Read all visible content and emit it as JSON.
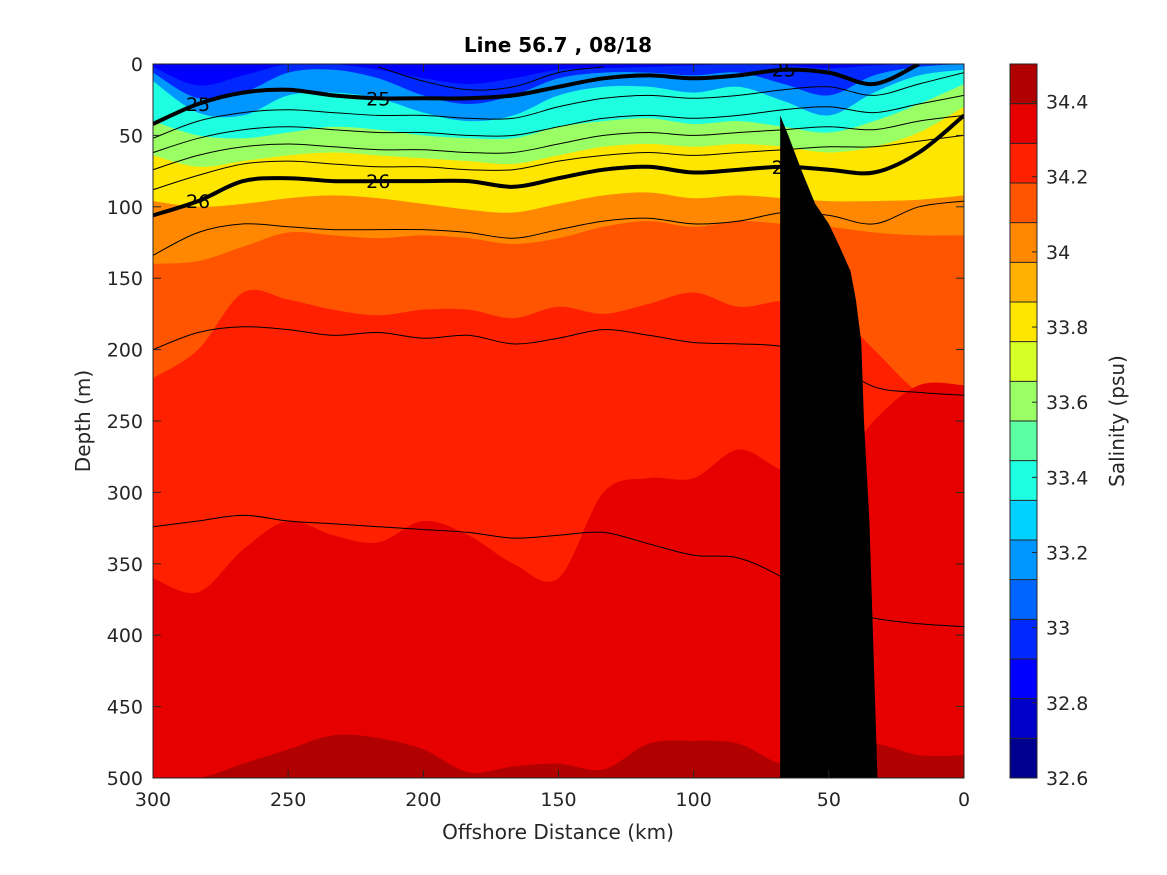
{
  "chart_data": {
    "type": "heatmap",
    "title": "Line 56.7 , 08/18",
    "xlabel": "Offshore Distance (km)",
    "ylabel": "Depth (m)",
    "colorbar_label": "Salinity (psu)",
    "xlim": [
      300,
      0
    ],
    "ylim": [
      500,
      0
    ],
    "x_ticks": [
      300,
      250,
      200,
      150,
      100,
      50,
      0
    ],
    "y_ticks": [
      0,
      50,
      100,
      150,
      200,
      250,
      300,
      350,
      400,
      450,
      500
    ],
    "colorbar_ticks": [
      32.6,
      32.8,
      33.0,
      33.2,
      33.4,
      33.6,
      33.8,
      34.0,
      34.2,
      34.4
    ],
    "colorbar_tick_labels": [
      "32.6",
      "32.8",
      "33",
      "33.2",
      "33.4",
      "33.6",
      "33.8",
      "34",
      "34.2",
      "34.4"
    ],
    "colorbar_range": [
      32.6,
      34.5
    ],
    "colormap": [
      "#00008f",
      "#0000c8",
      "#0000ff",
      "#0028ff",
      "#0064ff",
      "#0096ff",
      "#00d2ff",
      "#1effe1",
      "#5cffa3",
      "#9aff64",
      "#d6ff28",
      "#ffe600",
      "#ffb000",
      "#ff8800",
      "#ff5400",
      "#ff2000",
      "#e60000",
      "#b00000"
    ],
    "salinity_levels": [
      {
        "value": 33.0,
        "depth": [
          2,
          15,
          8,
          0,
          0,
          4,
          10,
          14,
          10,
          4,
          3,
          2,
          1,
          0,
          1,
          3,
          1,
          0,
          0
        ]
      },
      {
        "value": 33.2,
        "depth": [
          6,
          24,
          20,
          6,
          4,
          10,
          22,
          28,
          22,
          10,
          6,
          6,
          8,
          6,
          14,
          22,
          8,
          2,
          0
        ]
      },
      {
        "value": 33.4,
        "depth": [
          12,
          34,
          36,
          22,
          20,
          24,
          34,
          40,
          36,
          22,
          16,
          16,
          20,
          16,
          26,
          36,
          20,
          8,
          4
        ]
      },
      {
        "value": 33.6,
        "depth": [
          40,
          50,
          52,
          48,
          44,
          46,
          50,
          52,
          52,
          44,
          40,
          38,
          42,
          40,
          44,
          48,
          40,
          28,
          14
        ]
      },
      {
        "value": 33.8,
        "depth": [
          64,
          72,
          68,
          64,
          62,
          64,
          66,
          68,
          70,
          64,
          58,
          56,
          58,
          56,
          58,
          62,
          58,
          48,
          30
        ]
      },
      {
        "value": 34.0,
        "depth": [
          96,
          100,
          98,
          94,
          92,
          94,
          98,
          102,
          104,
          98,
          92,
          90,
          94,
          92,
          94,
          96,
          96,
          95,
          92
        ]
      },
      {
        "value": 34.1,
        "depth": [
          140,
          138,
          128,
          118,
          120,
          122,
          120,
          122,
          126,
          122,
          114,
          110,
          114,
          110,
          112,
          114,
          118,
          120,
          120
        ]
      },
      {
        "value": 34.2,
        "depth": [
          220,
          200,
          160,
          165,
          172,
          176,
          172,
          172,
          178,
          170,
          175,
          168,
          160,
          170,
          166,
          170,
          200,
          230,
          240
        ]
      },
      {
        "value": 34.3,
        "depth": [
          360,
          370,
          340,
          320,
          330,
          335,
          320,
          330,
          350,
          360,
          300,
          290,
          290,
          270,
          285,
          290,
          250,
          225,
          225
        ]
      },
      {
        "value": 34.4,
        "depth": [
          500,
          500,
          490,
          480,
          470,
          472,
          480,
          496,
          492,
          490,
          494,
          476,
          474,
          476,
          490,
          480,
          476,
          484,
          484
        ]
      }
    ],
    "density_contours": [
      {
        "sigma": 24.8,
        "label": "",
        "bold": false,
        "depth": [
          null,
          null,
          null,
          null,
          null,
          2,
          12,
          18,
          16,
          6,
          2,
          null,
          null,
          null,
          null,
          null,
          null,
          null,
          null
        ]
      },
      {
        "sigma": 25,
        "label": "25",
        "bold": true,
        "depth": [
          42,
          28,
          20,
          18,
          22,
          24,
          24,
          24,
          22,
          16,
          10,
          8,
          10,
          8,
          4,
          6,
          14,
          0,
          null
        ]
      },
      {
        "sigma": 25.2,
        "label": "",
        "bold": false,
        "depth": [
          52,
          40,
          34,
          32,
          34,
          36,
          36,
          38,
          38,
          30,
          24,
          22,
          24,
          22,
          18,
          16,
          22,
          14,
          6
        ]
      },
      {
        "sigma": 25.4,
        "label": "",
        "bold": false,
        "depth": [
          62,
          52,
          46,
          44,
          46,
          48,
          48,
          50,
          50,
          44,
          38,
          36,
          38,
          36,
          32,
          30,
          34,
          28,
          22
        ]
      },
      {
        "sigma": 25.6,
        "label": "",
        "bold": false,
        "depth": [
          74,
          64,
          58,
          56,
          58,
          60,
          60,
          62,
          62,
          56,
          50,
          48,
          50,
          48,
          46,
          44,
          46,
          40,
          36
        ]
      },
      {
        "sigma": 25.8,
        "label": "",
        "bold": false,
        "depth": [
          88,
          78,
          70,
          68,
          70,
          72,
          72,
          74,
          74,
          68,
          64,
          62,
          64,
          62,
          60,
          58,
          58,
          54,
          50
        ]
      },
      {
        "sigma": 26,
        "label": "26",
        "bold": true,
        "depth": [
          106,
          96,
          82,
          80,
          82,
          82,
          82,
          82,
          86,
          80,
          74,
          72,
          76,
          74,
          72,
          74,
          76,
          62,
          36
        ]
      },
      {
        "sigma": 26.2,
        "label": "",
        "bold": false,
        "depth": [
          134,
          118,
          112,
          114,
          116,
          116,
          116,
          118,
          122,
          116,
          110,
          108,
          112,
          110,
          104,
          106,
          112,
          100,
          96
        ]
      },
      {
        "sigma": 26.4,
        "label": "",
        "bold": false,
        "depth": [
          200,
          188,
          184,
          186,
          190,
          188,
          192,
          190,
          196,
          192,
          186,
          190,
          195,
          196,
          198,
          208,
          226,
          230,
          232
        ]
      },
      {
        "sigma": 26.6,
        "label": "",
        "bold": false,
        "depth": [
          324,
          320,
          316,
          320,
          322,
          324,
          326,
          328,
          332,
          330,
          328,
          336,
          344,
          346,
          360,
          380,
          388,
          392,
          394
        ]
      }
    ],
    "bathymetry": [
      [
        32,
        500
      ],
      [
        33,
        440
      ],
      [
        34,
        380
      ],
      [
        35,
        320
      ],
      [
        37,
        250
      ],
      [
        38,
        195
      ],
      [
        40,
        165
      ],
      [
        42,
        145
      ],
      [
        46,
        128
      ],
      [
        50,
        112
      ],
      [
        55,
        98
      ],
      [
        60,
        75
      ],
      [
        65,
        50
      ],
      [
        68,
        36
      ],
      [
        68,
        500
      ]
    ],
    "grid": false
  }
}
